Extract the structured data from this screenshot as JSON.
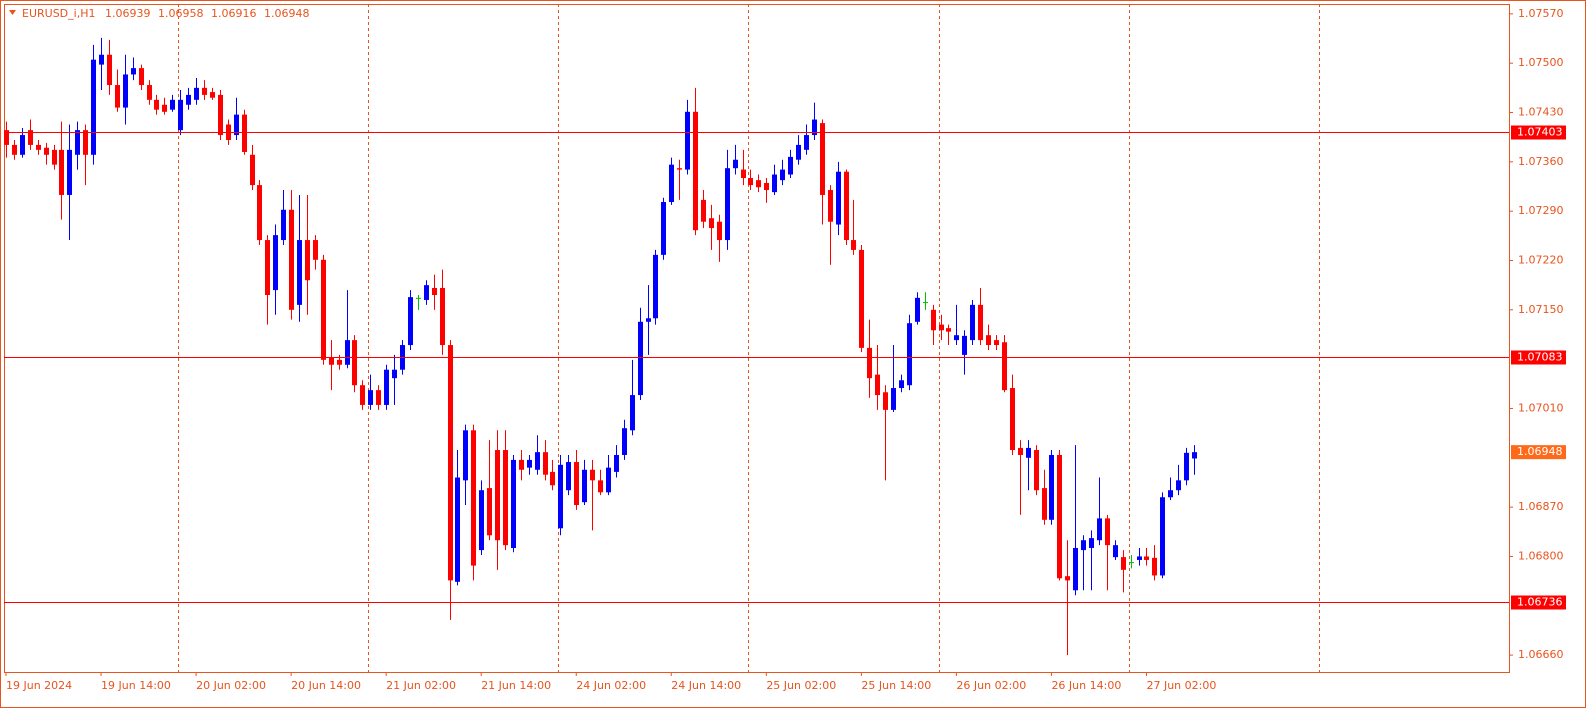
{
  "chart_data": {
    "type": "candlestick",
    "title": "EURUSD_i,H1",
    "categories": [
      "19 Jun 2024",
      null,
      null,
      null,
      null,
      null,
      null,
      null,
      null,
      null,
      null,
      null,
      "19 Jun 14:00",
      null,
      null,
      null,
      null,
      null,
      null,
      null,
      null,
      null,
      null,
      null,
      "20 Jun 02:00",
      null,
      null,
      null,
      null,
      null,
      null,
      null,
      null,
      null,
      null,
      null,
      "20 Jun 14:00",
      null,
      null,
      null,
      null,
      null,
      null,
      null,
      null,
      null,
      null,
      null,
      "21 Jun 02:00",
      null,
      null,
      null,
      null,
      null,
      null,
      null,
      null,
      null,
      null,
      null,
      "21 Jun 14:00",
      null,
      null,
      null,
      null,
      null,
      null,
      null,
      null,
      null,
      null,
      null,
      "24 Jun 02:00",
      null,
      null,
      null,
      null,
      null,
      null,
      null,
      null,
      null,
      null,
      null,
      "24 Jun 14:00",
      null,
      null,
      null,
      null,
      null,
      null,
      null,
      null,
      null,
      null,
      null,
      "25 Jun 02:00",
      null,
      null,
      null,
      null,
      null,
      null,
      null,
      null,
      null,
      null,
      null,
      "25 Jun 14:00",
      null,
      null,
      null,
      null,
      null,
      null,
      null,
      null,
      null,
      null,
      null,
      "26 Jun 02:00",
      null,
      null,
      null,
      null,
      null,
      null,
      null,
      null,
      null,
      null,
      null,
      "26 Jun 14:00",
      null,
      null,
      null,
      null,
      null,
      null,
      null,
      null,
      null,
      null,
      null,
      "27 Jun 02:00",
      null,
      null,
      null,
      null,
      null,
      null
    ],
    "open": [
      1.07405,
      1.07384,
      1.0737,
      1.07405,
      1.07384,
      1.0738,
      1.07377,
      1.07377,
      1.07313,
      1.0737,
      1.07405,
      1.0737,
      1.07498,
      1.07512,
      1.07469,
      1.07437,
      1.07484,
      1.07493,
      1.07469,
      1.07448,
      1.07441,
      1.07434,
      1.07405,
      1.07441,
      1.07448,
      1.07465,
      1.07459,
      1.07455,
      1.07413,
      1.07398,
      1.07427,
      1.0737,
      1.07327,
      1.07249,
      1.07178,
      1.07249,
      1.07292,
      1.07157,
      1.07249,
      1.07249,
      1.07221,
      1.07082,
      1.07079,
      1.07072,
      1.07107,
      1.07043,
      1.07015,
      1.07036,
      1.07015,
      1.07053,
      1.07065,
      1.071,
      1.07167,
      1.07164,
      1.07181,
      1.07181,
      1.071,
      1.06764,
      1.06908,
      1.06979,
      1.06809,
      1.06897,
      1.06951,
      1.06951,
      1.06812,
      1.06937,
      1.06926,
      1.06923,
      1.06948,
      1.0692,
      1.0684,
      1.06894,
      1.06934,
      1.06877,
      1.06923,
      1.06908,
      1.06891,
      1.0692,
      1.06944,
      1.06979,
      1.07029,
      1.07133,
      1.07138,
      1.07228,
      1.07303,
      1.07351,
      1.07349,
      1.07431,
      1.07306,
      1.0728,
      1.07275,
      1.07249,
      1.07351,
      1.07349,
      1.07337,
      1.07334,
      1.0733,
      1.07317,
      1.07334,
      1.07342,
      1.07363,
      1.07377,
      1.07398,
      1.07415,
      1.0732,
      1.07271,
      1.07346,
      1.07249,
      1.07235,
      1.07096,
      1.07058,
      1.07033,
      1.07008,
      1.07039,
      1.07043,
      1.07133,
      1.07161,
      1.0715,
      1.07129,
      1.07124,
      1.07107,
      1.07086,
      1.07107,
      1.07157,
      1.07114,
      1.07107,
      1.07104,
      1.07039,
      1.06954,
      1.0694,
      1.06951,
      1.06897,
      1.06852,
      1.06944,
      1.06772,
      1.06752,
      1.06809,
      1.06812,
      1.06823,
      1.06854,
      1.06799,
      1.06799,
      1.06792,
      1.06795,
      1.068,
      1.06798,
      1.06773,
      1.06884,
      1.06894,
      1.06908,
      1.06939
    ],
    "high": [
      1.07417,
      1.07391,
      1.07408,
      1.0742,
      1.07391,
      1.07387,
      1.07384,
      1.07417,
      1.07413,
      1.07417,
      1.07413,
      1.07526,
      1.07536,
      1.07533,
      1.07491,
      1.07512,
      1.07508,
      1.07498,
      1.07476,
      1.07455,
      1.07451,
      1.07455,
      1.07462,
      1.07465,
      1.07479,
      1.07476,
      1.07465,
      1.07462,
      1.0742,
      1.07451,
      1.07434,
      1.07384,
      1.07334,
      1.07256,
      1.07271,
      1.0732,
      1.0732,
      1.07313,
      1.07313,
      1.07256,
      1.07228,
      1.07107,
      1.07086,
      1.07178,
      1.07114,
      1.0705,
      1.07058,
      1.07043,
      1.07072,
      1.07086,
      1.07107,
      1.07178,
      1.07171,
      1.07192,
      1.072,
      1.07207,
      1.07107,
      1.06951,
      1.06987,
      1.06987,
      1.06908,
      1.06965,
      1.06979,
      1.06979,
      1.06944,
      1.06951,
      1.06944,
      1.06972,
      1.06965,
      1.06937,
      1.06944,
      1.06944,
      1.06951,
      1.06937,
      1.06937,
      1.06923,
      1.06944,
      1.06958,
      1.06994,
      1.07079,
      1.07153,
      1.07185,
      1.07235,
      1.07309,
      1.07366,
      1.07363,
      1.07448,
      1.07465,
      1.0732,
      1.07299,
      1.07285,
      1.07377,
      1.07384,
      1.07377,
      1.07349,
      1.07342,
      1.07337,
      1.07356,
      1.07363,
      1.07377,
      1.07398,
      1.07413,
      1.07444,
      1.0742,
      1.07327,
      1.0736,
      1.07349,
      1.07306,
      1.07242,
      1.07136,
      1.071,
      1.07043,
      1.071,
      1.07058,
      1.07143,
      1.07175,
      1.07175,
      1.07157,
      1.07143,
      1.07129,
      1.07157,
      1.07121,
      1.07164,
      1.07181,
      1.07129,
      1.07114,
      1.07114,
      1.07058,
      1.06965,
      1.06965,
      1.06958,
      1.06923,
      1.06951,
      1.06951,
      1.06823,
      1.06958,
      1.0683,
      1.06837,
      1.06912,
      1.06859,
      1.06823,
      1.06809,
      1.06802,
      1.06812,
      1.06812,
      1.06816,
      1.06891,
      1.06912,
      1.0693,
      1.06954,
      1.06958
    ],
    "low": [
      1.07366,
      1.07363,
      1.07366,
      1.07377,
      1.0737,
      1.07356,
      1.07349,
      1.07278,
      1.07249,
      1.07349,
      1.07327,
      1.07356,
      1.07462,
      1.07455,
      1.07431,
      1.07413,
      1.07476,
      1.07462,
      1.07441,
      1.07427,
      1.07427,
      1.07431,
      1.07398,
      1.07434,
      1.07441,
      1.07448,
      1.07448,
      1.07391,
      1.07384,
      1.07391,
      1.0737,
      1.0732,
      1.07242,
      1.07129,
      1.07143,
      1.07242,
      1.07136,
      1.07133,
      1.07143,
      1.07207,
      1.07072,
      1.07036,
      1.07065,
      1.07067,
      1.07033,
      1.07008,
      1.07008,
      1.07008,
      1.07008,
      1.07015,
      1.07058,
      1.07093,
      1.0715,
      1.07157,
      1.0715,
      1.07086,
      1.0671,
      1.06759,
      1.06873,
      1.06766,
      1.06802,
      1.06823,
      1.06781,
      1.06809,
      1.06806,
      1.06908,
      1.06916,
      1.06916,
      1.06908,
      1.06894,
      1.0683,
      1.06887,
      1.06866,
      1.06873,
      1.06837,
      1.06887,
      1.06887,
      1.06912,
      1.06937,
      1.06972,
      1.07022,
      1.07086,
      1.07129,
      1.07221,
      1.07299,
      1.07306,
      1.07342,
      1.07256,
      1.07266,
      1.07235,
      1.07218,
      1.07235,
      1.07342,
      1.07327,
      1.0732,
      1.07317,
      1.07302,
      1.07313,
      1.07327,
      1.07337,
      1.07356,
      1.0737,
      1.07391,
      1.07271,
      1.07214,
      1.07256,
      1.07242,
      1.07228,
      1.0709,
      1.07025,
      1.07008,
      1.06908,
      1.07005,
      1.07033,
      1.07036,
      1.07129,
      1.0715,
      1.071,
      1.07107,
      1.071,
      1.071,
      1.07058,
      1.071,
      1.071,
      1.07093,
      1.07093,
      1.07033,
      1.06944,
      1.06859,
      1.06894,
      1.06887,
      1.06845,
      1.06845,
      1.06766,
      1.0666,
      1.06745,
      1.06752,
      1.06752,
      1.06816,
      1.06752,
      1.06795,
      1.06749,
      1.06783,
      1.06787,
      1.06787,
      1.06766,
      1.06769,
      1.0688,
      1.06887,
      1.06901,
      1.06916
    ],
    "close": [
      1.07384,
      1.0737,
      1.07398,
      1.07384,
      1.07377,
      1.0737,
      1.07356,
      1.07313,
      1.07377,
      1.07405,
      1.0737,
      1.07505,
      1.07512,
      1.07469,
      1.07437,
      1.07484,
      1.07493,
      1.07469,
      1.07448,
      1.07434,
      1.07431,
      1.07448,
      1.07448,
      1.07455,
      1.07465,
      1.07455,
      1.07451,
      1.07398,
      1.07391,
      1.07427,
      1.07374,
      1.07327,
      1.07249,
      1.07171,
      1.07256,
      1.07292,
      1.0715,
      1.07249,
      1.07192,
      1.07221,
      1.07079,
      1.07072,
      1.07072,
      1.07107,
      1.07043,
      1.07015,
      1.07036,
      1.07015,
      1.07065,
      1.07065,
      1.071,
      1.07168,
      1.07167,
      1.07185,
      1.07171,
      1.071,
      1.06766,
      1.06912,
      1.06979,
      1.06787,
      1.06894,
      1.0683,
      1.06823,
      1.06816,
      1.06937,
      1.06923,
      1.06937,
      1.06948,
      1.06916,
      1.06901,
      1.0693,
      1.06934,
      1.06873,
      1.06923,
      1.06908,
      1.06891,
      1.06926,
      1.06944,
      1.06982,
      1.07029,
      1.07133,
      1.07138,
      1.07228,
      1.07303,
      1.07356,
      1.07349,
      1.07431,
      1.07263,
      1.07275,
      1.07266,
      1.07249,
      1.07351,
      1.07363,
      1.07337,
      1.07327,
      1.07324,
      1.0732,
      1.07342,
      1.07349,
      1.07367,
      1.07384,
      1.07398,
      1.0742,
      1.07313,
      1.07275,
      1.07346,
      1.07249,
      1.07235,
      1.07096,
      1.07053,
      1.07029,
      1.07008,
      1.07039,
      1.0705,
      1.07131,
      1.07167,
      1.07161,
      1.07121,
      1.07121,
      1.07119,
      1.07114,
      1.07113,
      1.07157,
      1.07107,
      1.071,
      1.071,
      1.07036,
      1.06951,
      1.06944,
      1.06954,
      1.06894,
      1.06852,
      1.06944,
      1.06769,
      1.06766,
      1.06812,
      1.06823,
      1.06826,
      1.06854,
      1.06816,
      1.06816,
      1.06781,
      1.06792,
      1.068,
      1.06795,
      1.06773,
      1.06884,
      1.06894,
      1.06908,
      1.06947,
      1.06948
    ],
    "colors": {
      "up": "#0000ff",
      "down": "#ff0000",
      "doji": "#00c000"
    },
    "ylim": [
      1.06636,
      1.07584
    ],
    "yticks": [
      {
        "value": 1.0757,
        "label": "1.07570"
      },
      {
        "value": 1.075,
        "label": "1.07500"
      },
      {
        "value": 1.0743,
        "label": "1.07430"
      },
      {
        "value": 1.0736,
        "label": "1.07360"
      },
      {
        "value": 1.0729,
        "label": "1.07290"
      },
      {
        "value": 1.0722,
        "label": "1.07220"
      },
      {
        "value": 1.0715,
        "label": "1.07150"
      },
      {
        "value": 1.0701,
        "label": "1.07010"
      },
      {
        "value": 1.0687,
        "label": "1.06870"
      },
      {
        "value": 1.068,
        "label": "1.06800"
      },
      {
        "value": 1.0666,
        "label": "1.06660"
      }
    ],
    "hlines": [
      1.07403,
      1.07083,
      1.06736
    ],
    "hline_color": "#ff0000",
    "last_price_color": "#ff6a1a",
    "axis_color": "#e8541e",
    "grid": false
  }
}
